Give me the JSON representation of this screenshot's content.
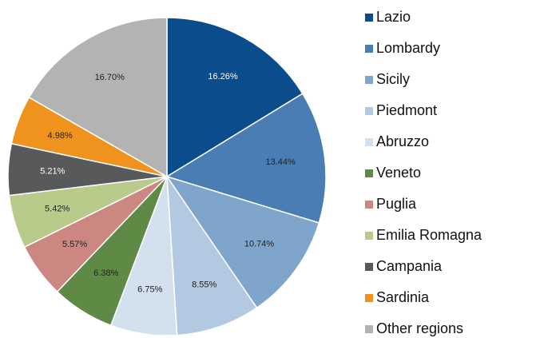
{
  "chart_data": {
    "type": "pie",
    "categories": [
      "Lazio",
      "Lombardy",
      "Sicily",
      "Piedmont",
      "Abruzzo",
      "Veneto",
      "Puglia",
      "Emilia Romagna",
      "Campania",
      "Sardinia",
      "Other regions"
    ],
    "values": [
      16.26,
      13.44,
      10.74,
      8.55,
      6.75,
      6.38,
      5.57,
      5.42,
      5.21,
      4.98,
      16.7
    ],
    "value_labels": [
      "16.26%",
      "13.44%",
      "10.74%",
      "8.55%",
      "6.75%",
      "6.38%",
      "5.57%",
      "5.42%",
      "5.21%",
      "4.98%",
      "16.70%"
    ],
    "colors": [
      "#0b4c8c",
      "#4a7db3",
      "#7fa5cb",
      "#b2c9e1",
      "#d3e0ee",
      "#5f8a45",
      "#cd8783",
      "#b8cb8b",
      "#58595b",
      "#f0931e",
      "#b3b3b3"
    ],
    "legend": "right"
  }
}
